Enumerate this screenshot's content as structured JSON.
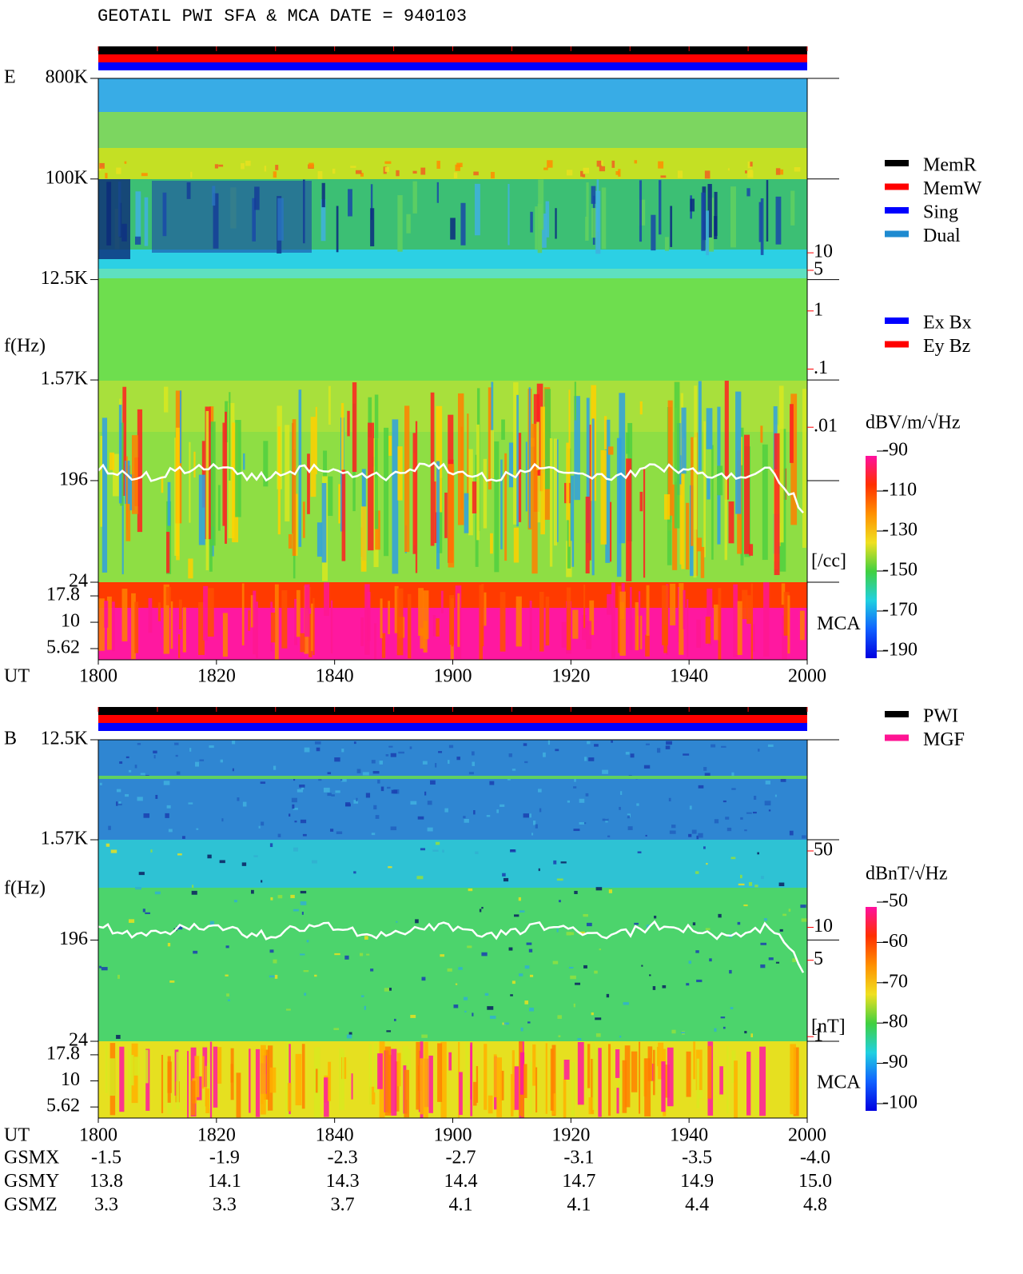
{
  "header": {
    "title": "GEOTAIL  PWI SFA & MCA   DATE = 940103"
  },
  "chart_data": [
    {
      "type": "spectrogram",
      "panel_label": "E",
      "y_label": "f(Hz)",
      "x_label": "UT",
      "yscale": "log",
      "ylim": [
        24,
        800000
      ],
      "yticks": [
        {
          "value": 800000,
          "label": "800K"
        },
        {
          "value": 100000,
          "label": "100K"
        },
        {
          "value": 12500,
          "label": "12.5K"
        },
        {
          "value": 1570,
          "label": "1.57K"
        },
        196,
        24
      ],
      "mca_label": "MCA",
      "mca_ylim": [
        4.4,
        24
      ],
      "mca_yticks": [
        17.8,
        10,
        5.62
      ],
      "x_labels": [
        "1800",
        "1820",
        "1840",
        "1900",
        "1920",
        "1940",
        "2000"
      ],
      "colorbar": {
        "label": "dBV/m/√Hz",
        "clim": [
          -190,
          -90
        ],
        "ticks": [
          -90,
          -110,
          -130,
          -150,
          -170,
          -190
        ]
      },
      "density_axis": {
        "unit_label": "[/cc]",
        "color": "#ff0000",
        "ylim": [
          1e-06,
          10000
        ],
        "ticks": [
          10,
          5,
          1,
          {
            "value": 0.1,
            "label": ".1"
          },
          {
            "value": 0.01,
            "label": ".01"
          }
        ]
      },
      "legend": [
        {
          "name": "MemR",
          "color": "#000000"
        },
        {
          "name": "MemW",
          "color": "#ff0000"
        },
        {
          "name": "Sing",
          "color": "#0000ff"
        },
        {
          "name": "Dual",
          "color": "#1e8ad0"
        }
      ],
      "legend2": [
        {
          "name": "Ex Bx",
          "color": "#0000ff"
        },
        {
          "name": "Ey Bz",
          "color": "#ff0000"
        }
      ]
    },
    {
      "type": "spectrogram",
      "panel_label": "B",
      "y_label": "f(Hz)",
      "x_label": "UT",
      "yscale": "log",
      "ylim": [
        24,
        12500
      ],
      "yticks": [
        {
          "value": 12500,
          "label": "12.5K"
        },
        {
          "value": 1570,
          "label": "1.57K"
        },
        196,
        24
      ],
      "mca_label": "MCA",
      "mca_ylim": [
        4.4,
        24
      ],
      "mca_yticks": [
        17.8,
        10,
        5.62
      ],
      "x_labels": [
        "1800",
        "1820",
        "1840",
        "1900",
        "1920",
        "1940",
        "2000"
      ],
      "colorbar": {
        "label": "dBnT/√Hz",
        "clim": [
          -100,
          -50
        ],
        "ticks": [
          -50,
          -60,
          -70,
          -80,
          -90,
          -100
        ]
      },
      "density_axis": {
        "unit_label": "[nT]",
        "color": "#ff0000",
        "ylim": [
          0.18,
          520
        ],
        "ticks": [
          50,
          10,
          5,
          1
        ]
      },
      "legend": [
        {
          "name": "PWI",
          "color": "#000000"
        },
        {
          "name": "MGF",
          "color": "#ff1493"
        }
      ]
    }
  ],
  "orbit": {
    "rows": [
      {
        "label": "GSMX",
        "values": [
          "-1.5",
          "-1.9",
          "-2.3",
          "-2.7",
          "-3.1",
          "-3.5",
          "-4.0"
        ]
      },
      {
        "label": "GSMY",
        "values": [
          "13.8",
          "14.1",
          "14.3",
          "14.4",
          "14.7",
          "14.9",
          "15.0"
        ]
      },
      {
        "label": "GSMZ",
        "values": [
          "3.3",
          "3.3",
          "3.7",
          "4.1",
          "4.1",
          "4.4",
          "4.8"
        ]
      }
    ]
  }
}
